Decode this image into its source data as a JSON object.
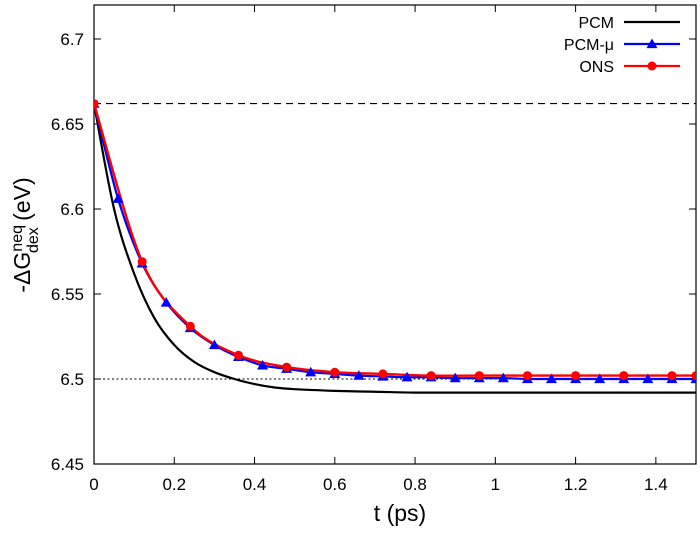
{
  "chart_data": {
    "type": "line",
    "xlabel": "t (ps)",
    "ylabel": {
      "prefix": "-ΔG",
      "superscript": "neq",
      "subscript": "dex",
      "suffix": " (eV)"
    },
    "xlim": [
      0,
      1.5
    ],
    "ylim": [
      6.45,
      6.72
    ],
    "x_ticks": [
      0,
      0.2,
      0.4,
      0.6,
      0.8,
      1,
      1.2,
      1.4
    ],
    "x_tick_labels": [
      "0",
      "0.2",
      "0.4",
      "0.6",
      "0.8",
      "1",
      "1.2",
      "1.4"
    ],
    "y_ticks": [
      6.45,
      6.5,
      6.55,
      6.6,
      6.65,
      6.7
    ],
    "y_tick_labels": [
      "6.45",
      "6.5",
      "6.55",
      "6.6",
      "6.65",
      "6.7"
    ],
    "grid": false,
    "legend_position": "top-right",
    "reference_lines": [
      {
        "y": 6.662,
        "style": "dashed"
      },
      {
        "y": 6.5,
        "style": "dotted"
      }
    ],
    "series": [
      {
        "name": "PCM",
        "color": "#000000",
        "marker": "none",
        "x": [
          0,
          0.05,
          0.1,
          0.15,
          0.2,
          0.25,
          0.3,
          0.35,
          0.4,
          0.45,
          0.5,
          0.55,
          0.6,
          0.7,
          0.8,
          0.9,
          1.0,
          1.1,
          1.2,
          1.3,
          1.4,
          1.5
        ],
        "y": [
          6.662,
          6.6,
          6.562,
          6.536,
          6.52,
          6.51,
          6.504,
          6.5,
          6.497,
          6.495,
          6.494,
          6.4935,
          6.493,
          6.4925,
          6.492,
          6.492,
          6.492,
          6.492,
          6.492,
          6.492,
          6.492,
          6.492
        ]
      },
      {
        "name": "PCM-μ",
        "color": "#0000ff",
        "marker": "triangle",
        "x": [
          0,
          0.06,
          0.12,
          0.18,
          0.24,
          0.3,
          0.36,
          0.42,
          0.48,
          0.54,
          0.6,
          0.66,
          0.72,
          0.78,
          0.84,
          0.9,
          0.96,
          1.02,
          1.08,
          1.14,
          1.2,
          1.26,
          1.32,
          1.38,
          1.44,
          1.5
        ],
        "y": [
          6.662,
          6.606,
          6.568,
          6.545,
          6.53,
          6.52,
          6.513,
          6.508,
          6.506,
          6.504,
          6.503,
          6.502,
          6.5015,
          6.501,
          6.501,
          6.5005,
          6.5005,
          6.5005,
          6.5,
          6.5,
          6.5,
          6.5,
          6.5,
          6.5,
          6.5,
          6.5
        ]
      },
      {
        "name": "ONS",
        "color": "#ff0000",
        "marker": "circle",
        "x": [
          0,
          0.12,
          0.24,
          0.36,
          0.48,
          0.6,
          0.72,
          0.84,
          0.96,
          1.08,
          1.2,
          1.32,
          1.44,
          1.5
        ],
        "y": [
          6.662,
          6.569,
          6.531,
          6.514,
          6.507,
          6.504,
          6.503,
          6.502,
          6.502,
          6.502,
          6.502,
          6.502,
          6.502,
          6.502
        ]
      }
    ]
  }
}
